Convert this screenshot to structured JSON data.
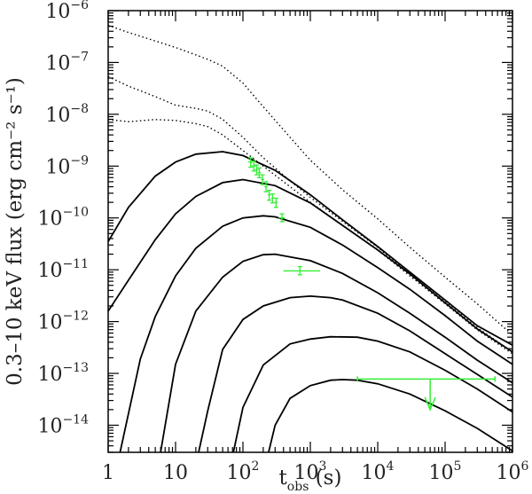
{
  "chart_data": {
    "type": "line",
    "title": "",
    "xscale": "log",
    "yscale": "log",
    "xlim": [
      1,
      1000000
    ],
    "ylim": [
      3e-15,
      1e-06
    ],
    "grid": false,
    "legend": "none",
    "xlabel": {
      "main": "t",
      "sub": "obs",
      "units": " (s)"
    },
    "ylabel": "0.3–10 keV flux (erg cm⁻² s⁻¹)",
    "x_ticks": [
      {
        "value": 1,
        "base": "1",
        "exp": ""
      },
      {
        "value": 10,
        "base": "10",
        "exp": ""
      },
      {
        "value": 100,
        "base": "10",
        "exp": "2"
      },
      {
        "value": 1000,
        "base": "10",
        "exp": "3"
      },
      {
        "value": 10000,
        "base": "10",
        "exp": "4"
      },
      {
        "value": 100000,
        "base": "10",
        "exp": "5"
      },
      {
        "value": 1000000,
        "base": "10",
        "exp": "6"
      }
    ],
    "y_ticks": [
      {
        "value": 1e-14,
        "base": "10",
        "exp": "−14"
      },
      {
        "value": 1e-13,
        "base": "10",
        "exp": "−13"
      },
      {
        "value": 1e-12,
        "base": "10",
        "exp": "−12"
      },
      {
        "value": 1e-11,
        "base": "10",
        "exp": "−11"
      },
      {
        "value": 1e-10,
        "base": "10",
        "exp": "−10"
      },
      {
        "value": 1e-09,
        "base": "10",
        "exp": "−9"
      },
      {
        "value": 1e-08,
        "base": "10",
        "exp": "−8"
      },
      {
        "value": 1e-07,
        "base": "10",
        "exp": "−7"
      },
      {
        "value": 1e-06,
        "base": "10",
        "exp": "−6"
      }
    ],
    "colors": {
      "model": "#000000",
      "data": "#33ee33",
      "axis": "#000000"
    },
    "solid_series": [
      {
        "x": [
          1,
          2,
          5,
          10,
          20,
          50,
          100,
          300,
          1000,
          3000,
          10000,
          30000,
          100000,
          300000,
          1000000
        ],
        "y": [
          3.5e-11,
          1.6e-10,
          6.4e-10,
          1.2e-09,
          1.7e-09,
          1.9e-09,
          1.6e-09,
          8.3e-10,
          2.8e-10,
          9.2e-11,
          2.8e-11,
          9e-12,
          2.6e-12,
          8.3e-13,
          3.5e-13
        ]
      },
      {
        "x": [
          1,
          2,
          5,
          10,
          20,
          50,
          100,
          300,
          1000,
          3000,
          10000,
          30000,
          100000,
          300000,
          1000000
        ],
        "y": [
          1.6e-12,
          6.3e-12,
          3.8e-11,
          1.2e-10,
          2.6e-10,
          4.8e-10,
          5.5e-10,
          4.2e-10,
          1.95e-10,
          7.2e-11,
          2.4e-11,
          8.3e-12,
          2.3e-12,
          7.2e-13,
          2.6e-13
        ]
      },
      {
        "x": [
          1.5,
          3,
          5,
          10,
          20,
          50,
          100,
          200,
          300,
          1000,
          3000,
          10000,
          30000,
          100000,
          300000,
          1000000
        ],
        "y": [
          3e-15,
          1.9e-13,
          1.25e-12,
          7.6e-12,
          2.6e-11,
          6.9e-11,
          1e-10,
          1.1e-10,
          1.05e-10,
          6.6e-11,
          3e-11,
          1.1e-11,
          4.2e-12,
          1.3e-12,
          4.2e-13,
          1.5e-13
        ]
      },
      {
        "x": [
          6,
          10,
          20,
          50,
          100,
          200,
          300,
          1000,
          3000,
          10000,
          30000,
          100000,
          300000,
          1000000
        ],
        "y": [
          3e-15,
          1.5e-13,
          1.6e-12,
          7.2e-12,
          1.45e-11,
          1.95e-11,
          2e-11,
          1.5e-11,
          8.5e-12,
          3.6e-12,
          1.45e-12,
          5e-13,
          1.8e-13,
          6.6e-14
        ]
      },
      {
        "x": [
          22,
          30,
          50,
          100,
          200,
          500,
          1000,
          2000,
          3000,
          10000,
          30000,
          100000,
          300000,
          1000000
        ],
        "y": [
          3e-15,
          1.9e-14,
          2.9e-13,
          1.1e-12,
          2e-12,
          2.9e-12,
          3.1e-12,
          2.9e-12,
          2.6e-12,
          1.45e-12,
          6.6e-13,
          2.4e-13,
          9.6e-14,
          3.5e-14
        ]
      },
      {
        "x": [
          72,
          100,
          200,
          500,
          1000,
          2000,
          5000,
          10000,
          30000,
          100000,
          300000,
          1000000
        ],
        "y": [
          3e-15,
          2.2e-14,
          1.45e-13,
          3.7e-13,
          4.6e-13,
          5.1e-13,
          5e-13,
          4.2e-13,
          2.6e-13,
          1.15e-13,
          5e-14,
          1.8e-14
        ]
      },
      {
        "x": [
          240,
          300,
          500,
          1000,
          2000,
          3000,
          5000,
          10000,
          30000,
          100000,
          300000,
          1000000
        ],
        "y": [
          3e-15,
          1e-14,
          3.3e-14,
          5.8e-14,
          7.4e-14,
          7.6e-14,
          7.4e-14,
          6.3e-14,
          4e-14,
          1.9e-14,
          8.7e-15,
          3.2e-15
        ]
      }
    ],
    "dotted_series": [
      {
        "x": [
          1,
          2,
          5,
          10,
          20,
          30,
          50,
          100,
          200,
          500,
          1000,
          3000,
          10000,
          30000,
          100000,
          300000,
          1000000
        ],
        "y": [
          5.2e-07,
          3.8e-07,
          2.6e-07,
          1.95e-07,
          1.4e-07,
          1.15e-07,
          8.5e-08,
          4e-08,
          1.4e-08,
          3.6e-09,
          1.3e-09,
          3.5e-10,
          9.6e-11,
          2.7e-11,
          7.2e-12,
          2.2e-12,
          5.5e-13
        ]
      },
      {
        "x": [
          1,
          2,
          5,
          10,
          20,
          30,
          50,
          100,
          200,
          500,
          1000,
          3000,
          10000,
          30000,
          100000,
          300000,
          1000000
        ],
        "y": [
          5.3e-08,
          3.5e-08,
          2.2e-08,
          1.5e-08,
          1.3e-08,
          1.15e-08,
          8e-09,
          3.6e-09,
          1.45e-09,
          5.2e-10,
          2.5e-10,
          8.6e-11,
          2.7e-11,
          8.3e-12,
          2.4e-12,
          7.6e-13,
          2.6e-13
        ]
      },
      {
        "x": [
          1,
          2,
          5,
          10,
          20,
          30,
          50,
          100,
          200,
          500,
          1000,
          3000,
          10000,
          30000,
          100000,
          300000,
          1000000
        ],
        "y": [
          7.9e-09,
          7.2e-09,
          7.9e-09,
          7.6e-09,
          6.6e-09,
          5.8e-09,
          4e-09,
          2e-09,
          1e-09,
          4e-10,
          2e-10,
          7.2e-11,
          2.4e-11,
          7.6e-12,
          2.2e-12,
          6.9e-13,
          2.4e-13
        ]
      }
    ],
    "data_points": [
      {
        "x": 130,
        "y": 1.2e-09,
        "x_lo": 120,
        "x_hi": 140,
        "y_lo": 9.5e-10,
        "y_hi": 1.45e-09
      },
      {
        "x": 145,
        "y": 1e-09,
        "x_lo": 135,
        "x_hi": 155,
        "y_lo": 8e-10,
        "y_hi": 1.25e-09
      },
      {
        "x": 160,
        "y": 8.5e-10,
        "x_lo": 150,
        "x_hi": 170,
        "y_lo": 6.8e-10,
        "y_hi": 1.05e-09
      },
      {
        "x": 175,
        "y": 7.5e-10,
        "x_lo": 165,
        "x_hi": 185,
        "y_lo": 6e-10,
        "y_hi": 9.2e-10
      },
      {
        "x": 195,
        "y": 5.5e-10,
        "x_lo": 185,
        "x_hi": 207,
        "y_lo": 4.4e-10,
        "y_hi": 6.8e-10
      },
      {
        "x": 220,
        "y": 4e-10,
        "x_lo": 208,
        "x_hi": 232,
        "y_lo": 3.2e-10,
        "y_hi": 5e-10
      },
      {
        "x": 245,
        "y": 2.8e-10,
        "x_lo": 233,
        "x_hi": 258,
        "y_lo": 2.2e-10,
        "y_hi": 3.4e-10
      },
      {
        "x": 275,
        "y": 2.4e-10,
        "x_lo": 262,
        "x_hi": 290,
        "y_lo": 1.95e-10,
        "y_hi": 2.9e-10
      },
      {
        "x": 310,
        "y": 2e-10,
        "x_lo": 295,
        "x_hi": 325,
        "y_lo": 1.6e-10,
        "y_hi": 2.4e-10
      },
      {
        "x": 380,
        "y": 1e-10,
        "x_lo": 340,
        "x_hi": 420,
        "y_lo": 8.5e-11,
        "y_hi": 1.2e-10
      },
      {
        "x": 700,
        "y": 9.5e-12,
        "x_lo": 400,
        "x_hi": 1400,
        "y_lo": 8e-12,
        "y_hi": 1.15e-11
      }
    ],
    "upper_limit": {
      "x": 60000,
      "y": 7.8e-14,
      "x_lo": 5000,
      "x_hi": 550000,
      "y_arrow_end": 2e-14
    }
  }
}
